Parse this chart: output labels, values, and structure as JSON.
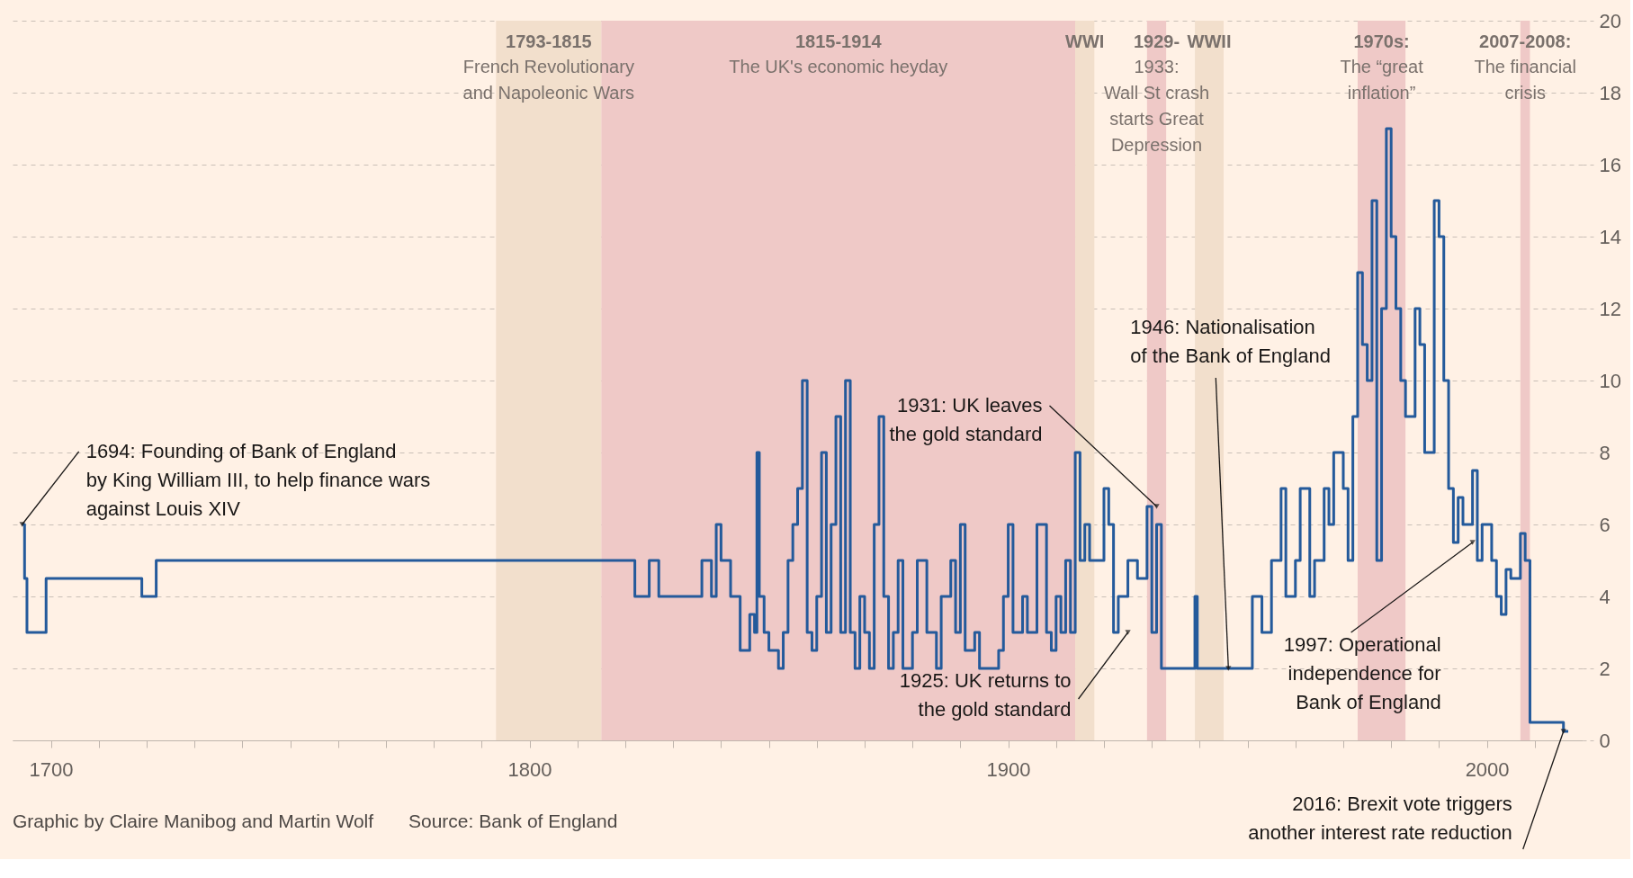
{
  "chart_data": {
    "type": "step",
    "x": [
      1694,
      1694.5,
      1695,
      1699,
      1719,
      1722,
      1822,
      1825,
      1827,
      1836,
      1838,
      1839,
      1840,
      1842,
      1844,
      1846,
      1847,
      1847.5,
      1848,
      1849,
      1850,
      1852,
      1853,
      1854,
      1855,
      1856,
      1857,
      1858,
      1859,
      1860,
      1861,
      1862,
      1863,
      1864,
      1865,
      1866,
      1867,
      1868,
      1869,
      1870,
      1871,
      1872,
      1873,
      1874,
      1875,
      1876,
      1877,
      1878,
      1880,
      1881,
      1883,
      1885,
      1886,
      1888,
      1889,
      1890,
      1891,
      1893,
      1894,
      1898,
      1899,
      1900,
      1901,
      1903,
      1904,
      1906,
      1908,
      1909,
      1910,
      1911,
      1912,
      1913,
      1914,
      1915,
      1916,
      1917,
      1920,
      1921,
      1922,
      1923,
      1925,
      1927,
      1929,
      1930,
      1931,
      1932,
      1939,
      1939.5,
      1951,
      1953,
      1955,
      1957,
      1958,
      1960,
      1961,
      1963,
      1964,
      1966,
      1967,
      1968,
      1970,
      1971,
      1972,
      1973,
      1974,
      1975,
      1976,
      1977,
      1978,
      1979,
      1980,
      1981,
      1982,
      1983,
      1985,
      1986,
      1987,
      1989,
      1990,
      1991,
      1992,
      1993,
      1994,
      1995,
      1997,
      1998,
      1999,
      2001,
      2002,
      2003,
      2004,
      2005,
      2007,
      2008,
      2009,
      2016,
      2017
    ],
    "series": [
      {
        "color": "#245a9b",
        "values": [
          6,
          4.5,
          3,
          4.5,
          4,
          5,
          4,
          5,
          4,
          5,
          4,
          6,
          5,
          4,
          2.5,
          3.5,
          3,
          8,
          4,
          3,
          2.5,
          2,
          3,
          5,
          6,
          7,
          10,
          3,
          2.5,
          4,
          8,
          3,
          6,
          9,
          3,
          10,
          3,
          2,
          4,
          3,
          2,
          6,
          9,
          4,
          2,
          3,
          5,
          2,
          3,
          5,
          3,
          2,
          4,
          5,
          3,
          6,
          2.5,
          3,
          2,
          2.5,
          4,
          6,
          3,
          4,
          3,
          6,
          3,
          2.5,
          4,
          3,
          5,
          3,
          8,
          5,
          6,
          5,
          7,
          6,
          3,
          4,
          5,
          4.5,
          6.5,
          3,
          6,
          2,
          4,
          2,
          4,
          3,
          5,
          7,
          4,
          5,
          7,
          4,
          5,
          7,
          6,
          8,
          7,
          5,
          9,
          13,
          11,
          10,
          15,
          5,
          12,
          17,
          14,
          12,
          10,
          9,
          12,
          11,
          8,
          15,
          14,
          10,
          7,
          5.5,
          6.75,
          6,
          7.5,
          5,
          6,
          5,
          4,
          3.5,
          4.75,
          4.5,
          5.75,
          5,
          0.5,
          0.25,
          0.25
        ]
      }
    ],
    "xlim": [
      1692,
      2020
    ],
    "xticks": [
      {
        "value": 1700,
        "label": "1700"
      },
      {
        "value": 1710,
        "label": null
      },
      {
        "value": 1720,
        "label": null
      },
      {
        "value": 1730,
        "label": null
      },
      {
        "value": 1740,
        "label": null
      },
      {
        "value": 1750,
        "label": null
      },
      {
        "value": 1760,
        "label": null
      },
      {
        "value": 1770,
        "label": null
      },
      {
        "value": 1780,
        "label": null
      },
      {
        "value": 1790,
        "label": null
      },
      {
        "value": 1800,
        "label": "1800"
      },
      {
        "value": 1810,
        "label": null
      },
      {
        "value": 1820,
        "label": null
      },
      {
        "value": 1830,
        "label": null
      },
      {
        "value": 1840,
        "label": null
      },
      {
        "value": 1850,
        "label": null
      },
      {
        "value": 1860,
        "label": null
      },
      {
        "value": 1870,
        "label": null
      },
      {
        "value": 1880,
        "label": null
      },
      {
        "value": 1890,
        "label": null
      },
      {
        "value": 1900,
        "label": "1900"
      },
      {
        "value": 1910,
        "label": null
      },
      {
        "value": 1920,
        "label": null
      },
      {
        "value": 1930,
        "label": null
      },
      {
        "value": 1940,
        "label": null
      },
      {
        "value": 1950,
        "label": null
      },
      {
        "value": 1960,
        "label": null
      },
      {
        "value": 1970,
        "label": null
      },
      {
        "value": 1980,
        "label": null
      },
      {
        "value": 1990,
        "label": null
      },
      {
        "value": 2000,
        "label": "2000"
      },
      {
        "value": 2010,
        "label": null
      }
    ],
    "ylim": [
      0,
      20
    ],
    "yticks": [
      0,
      2,
      4,
      6,
      8,
      10,
      12,
      14,
      16,
      18,
      20
    ],
    "grid": "y",
    "line_style": "solid",
    "marker": "none",
    "bands": [
      {
        "axis": "x",
        "from": 1793,
        "to": 1815,
        "color": "#f2dfcc",
        "label": "1793-1815\nFrench Revolutionary\nand Napoleonic Wars"
      },
      {
        "axis": "x",
        "from": 1815,
        "to": 1914,
        "color": "#efc9c7",
        "label": "1815-1914\nThe UK's economic heyday"
      },
      {
        "axis": "x",
        "from": 1914,
        "to": 1918,
        "color": "#f2dfcc",
        "label": "WWI"
      },
      {
        "axis": "x",
        "from": 1929,
        "to": 1933,
        "color": "#efc9c7",
        "label": "1929-\n1933:\nWall St crash\nstarts Great\nDepression"
      },
      {
        "axis": "x",
        "from": 1939,
        "to": 1945,
        "color": "#f2dfcc",
        "label": "WWII"
      },
      {
        "axis": "x",
        "from": 1973,
        "to": 1983,
        "color": "#efc9c7",
        "label": "1970s:\nThe “great\ninflation”"
      },
      {
        "axis": "x",
        "from": 2007,
        "to": 2009,
        "color": "#efc9c7",
        "label": "2007-2008:\nThe financial\ncrisis"
      }
    ],
    "annotations": [
      {
        "text": "1694:  Founding of Bank of England\nby King William III, to help finance wars\nagainst Louis XIV",
        "x": 1694,
        "y": 6
      },
      {
        "text": "1931:   UK leaves\nthe gold standard",
        "x": 1931,
        "y": 6.5
      },
      {
        "text": "1925:  UK returns to\nthe gold standard",
        "x": 1925,
        "y": 3
      },
      {
        "text": "1946:  Nationalisation\nof the Bank of England",
        "x": 1946,
        "y": 2
      },
      {
        "text": "1997:  Operational\nindependence for\nBank of England",
        "x": 1997,
        "y": 5.5
      },
      {
        "text": "2016:  Brexit vote triggers\nanother interest rate reduction",
        "x": 2016,
        "y": 0.25
      },
      "Graphic by Claire Manibog and Martin Wolf",
      "Source: Bank of England"
    ]
  }
}
